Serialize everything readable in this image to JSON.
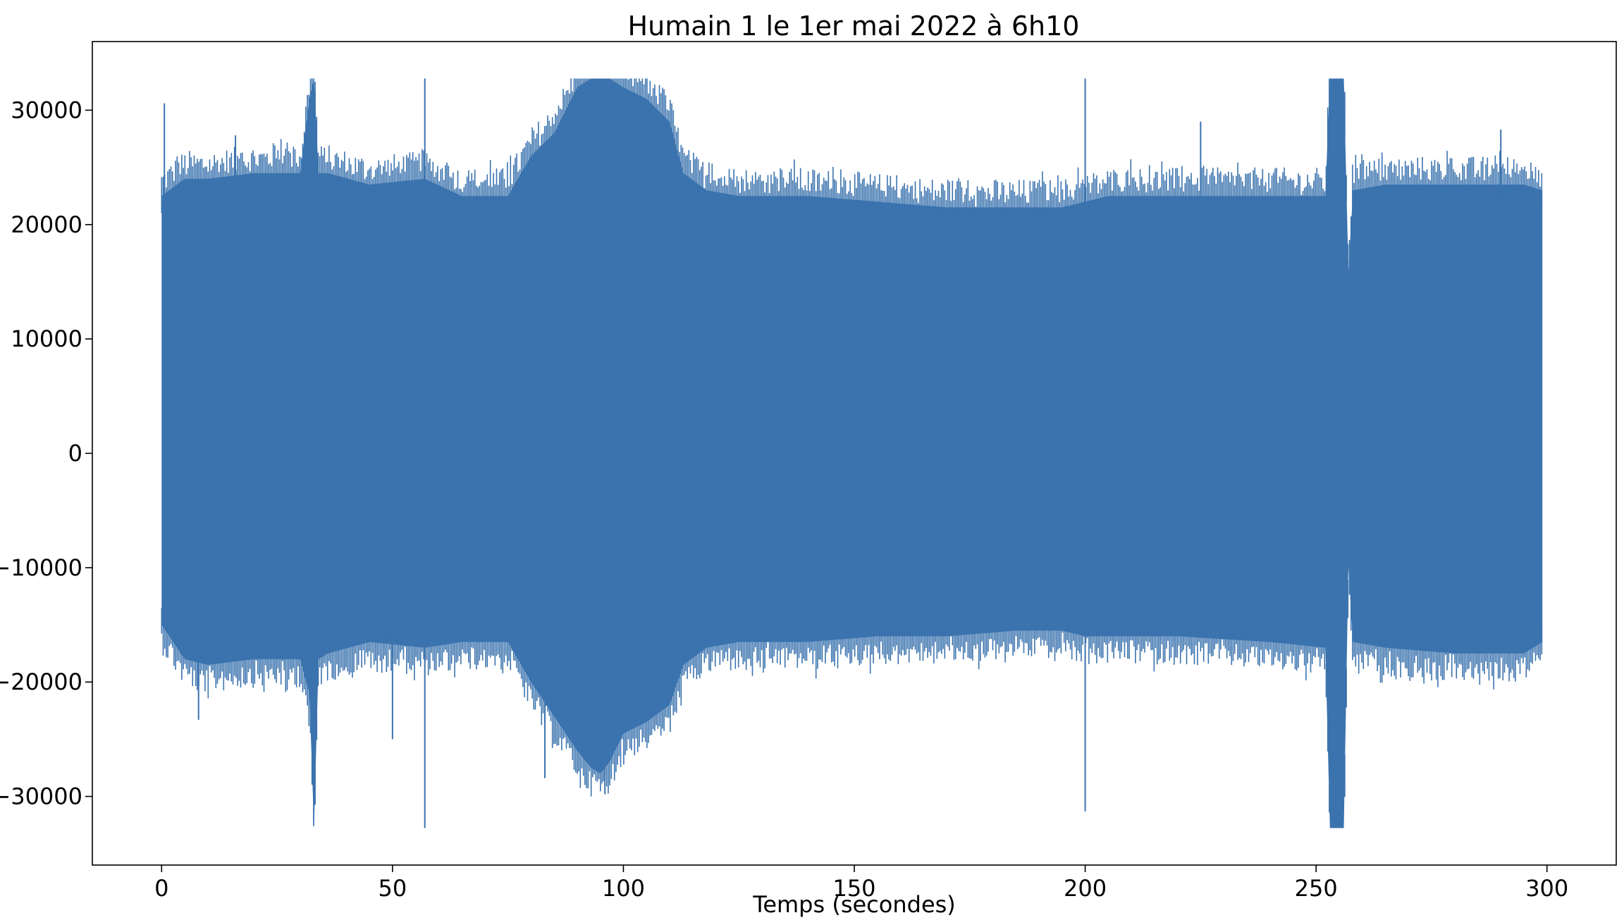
{
  "chart_data": {
    "type": "line",
    "title": "Humain 1 le 1er mai 2022 à 6h10",
    "xlabel": "Temps (secondes)",
    "ylabel": "",
    "xlim": [
      -15,
      315
    ],
    "ylim": [
      -36000,
      36000
    ],
    "xticks": [
      0,
      50,
      100,
      150,
      200,
      250,
      300
    ],
    "xtick_labels": [
      "0",
      "50",
      "100",
      "150",
      "200",
      "250",
      "300"
    ],
    "yticks": [
      -30000,
      -20000,
      -10000,
      0,
      10000,
      20000,
      30000
    ],
    "ytick_labels": [
      "−30000",
      "−20000",
      "−10000",
      "0",
      "10000",
      "20000",
      "30000"
    ],
    "grid": false,
    "legend": "none",
    "x_range": [
      0,
      299
    ],
    "envelope": {
      "x": [
        0,
        5,
        10,
        20,
        30,
        32,
        33,
        34,
        36,
        45,
        57,
        65,
        75,
        80,
        85,
        90,
        93,
        95,
        97,
        100,
        105,
        110,
        113,
        118,
        125,
        140,
        155,
        170,
        185,
        195,
        200,
        205,
        220,
        240,
        252,
        253,
        254,
        256,
        257,
        258,
        265,
        280,
        295,
        299
      ],
      "upper": [
        22500,
        24000,
        24000,
        24500,
        24500,
        31000,
        32767,
        24500,
        24500,
        23500,
        24000,
        22500,
        22500,
        26000,
        28000,
        32000,
        32767,
        32767,
        32767,
        32000,
        31000,
        29000,
        24500,
        23000,
        22500,
        22500,
        22000,
        21500,
        21500,
        21500,
        22000,
        22500,
        22500,
        22500,
        22500,
        32767,
        32767,
        32767,
        16000,
        23000,
        23500,
        23500,
        23500,
        23000
      ],
      "lower": [
        -15000,
        -18000,
        -18500,
        -18000,
        -18000,
        -21000,
        -32767,
        -18000,
        -17500,
        -16500,
        -17000,
        -16500,
        -16500,
        -20000,
        -23000,
        -26000,
        -27500,
        -28000,
        -27000,
        -24500,
        -23500,
        -22000,
        -18500,
        -17000,
        -16500,
        -16500,
        -16000,
        -16000,
        -15500,
        -15500,
        -16000,
        -16000,
        -16000,
        -16500,
        -17000,
        -32767,
        -32767,
        -32767,
        -10000,
        -16500,
        -17000,
        -17500,
        -17500,
        -16500
      ]
    },
    "spikes": [
      {
        "x": 0.6,
        "y": 30600
      },
      {
        "x": 8,
        "y": -23300
      },
      {
        "x": 16,
        "y": 27800
      },
      {
        "x": 57,
        "y": 32767
      },
      {
        "x": 57,
        "y": -32767
      },
      {
        "x": 50,
        "y": -25000
      },
      {
        "x": 83,
        "y": -28400
      },
      {
        "x": 96,
        "y": -29800
      },
      {
        "x": 200,
        "y": 32767
      },
      {
        "x": 200,
        "y": -31300
      },
      {
        "x": 225,
        "y": 29000
      },
      {
        "x": 290,
        "y": 28300
      }
    ],
    "series": [
      {
        "color": "#3b73ae"
      }
    ]
  }
}
